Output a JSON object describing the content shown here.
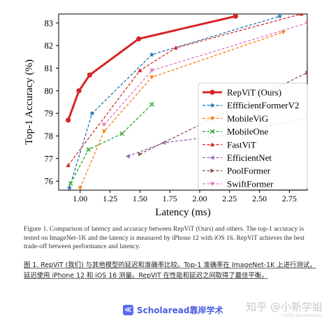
{
  "chart_data": {
    "type": "line",
    "xlabel": "Latency (ms)",
    "ylabel": "Top-1 Accuracy (%)",
    "xlim": [
      0.82,
      2.9
    ],
    "ylim": [
      75.6,
      83.4
    ],
    "xticks": [
      {
        "v": 1.0,
        "label": "1.00"
      },
      {
        "v": 1.25,
        "label": "1.25"
      },
      {
        "v": 1.5,
        "label": "1.50"
      },
      {
        "v": 1.75,
        "label": "1.75"
      },
      {
        "v": 2.0,
        "label": "2.00"
      },
      {
        "v": 2.25,
        "label": "2.25"
      },
      {
        "v": 2.5,
        "label": "2.50"
      },
      {
        "v": 2.75,
        "label": "2.75"
      }
    ],
    "yticks": [
      {
        "v": 76,
        "label": "76"
      },
      {
        "v": 77,
        "label": "77"
      },
      {
        "v": 78,
        "label": "78"
      },
      {
        "v": 79,
        "label": "79"
      },
      {
        "v": 80,
        "label": "80"
      },
      {
        "v": 81,
        "label": "81"
      },
      {
        "v": 82,
        "label": "82"
      },
      {
        "v": 83,
        "label": "83"
      }
    ],
    "legend_position": "right",
    "series": [
      {
        "name": "RepViT (Ours)",
        "color": "#d62728",
        "style": "solid",
        "marker": "circle",
        "width": 3,
        "x": [
          0.9,
          0.99,
          1.08,
          1.49,
          2.3
        ],
        "y": [
          78.7,
          80.0,
          80.7,
          82.3,
          83.3
        ]
      },
      {
        "name": "EffficientFormerV2",
        "color": "#1f77b4",
        "style": "dash",
        "marker": "star",
        "x": [
          0.91,
          1.1,
          1.6,
          2.67
        ],
        "y": [
          75.7,
          79.0,
          81.6,
          83.3
        ]
      },
      {
        "name": "MobileViG",
        "color": "#ff7f0e",
        "style": "dash",
        "marker": "triangle-down",
        "x": [
          1.0,
          1.2,
          1.6,
          2.7
        ],
        "y": [
          75.7,
          78.2,
          80.6,
          82.6
        ]
      },
      {
        "name": "MobileOne",
        "color": "#2ca02c",
        "style": "dash",
        "marker": "x",
        "x": [
          0.92,
          1.07,
          1.35,
          1.6
        ],
        "y": [
          75.9,
          77.4,
          78.1,
          79.4
        ]
      },
      {
        "name": "FastViT",
        "color": "#d62728",
        "style": "dash",
        "marker": "triangle-up",
        "x": [
          0.9,
          1.5,
          1.8,
          2.85
        ],
        "y": [
          76.7,
          80.9,
          81.9,
          83.4
        ]
      },
      {
        "name": "EfficientNet",
        "color": "#9467bd",
        "style": "dash",
        "marker": "triangle-left",
        "x": [
          1.4,
          1.7,
          2.3,
          2.9
        ],
        "y": [
          77.1,
          77.7,
          78.1,
          78.8
        ]
      },
      {
        "name": "PoolFormer",
        "color": "#8c564b",
        "style": "dash",
        "marker": "triangle-right",
        "x": [
          1.5,
          2.9
        ],
        "y": [
          77.2,
          80.8
        ]
      },
      {
        "name": "SwiftFormer",
        "color": "#e377c2",
        "style": "dash",
        "marker": "triangle-down",
        "x": [
          1.2,
          1.6,
          2.9
        ],
        "y": [
          78.5,
          80.9,
          83.0
        ]
      }
    ]
  },
  "caption": "Figure 1. Comparison of latency and accuracy between RepViT (Ours) and others. The top-1 accuracy is tested on ImageNet-1K and the latency is measured by iPhone 12 with iOS 16. RepViT achieves the best trade-off between performance and latency.",
  "caption_cn": "图 1. RepViT (我们) 与其他模型的延迟和准确率比较。Top-1 准确率在 ImageNet-1K 上进行测试，延迟使用 iPhone 12 和 iOS 16 测量。RepViT 在性能和延迟之间取得了最佳平衡。",
  "brand": {
    "icon": "≪",
    "text": "Scholaread靠岸学术"
  },
  "watermark": {
    "main": "知乎 @小新学姐",
    "sub": "CSDN @pabdaxxxn"
  }
}
